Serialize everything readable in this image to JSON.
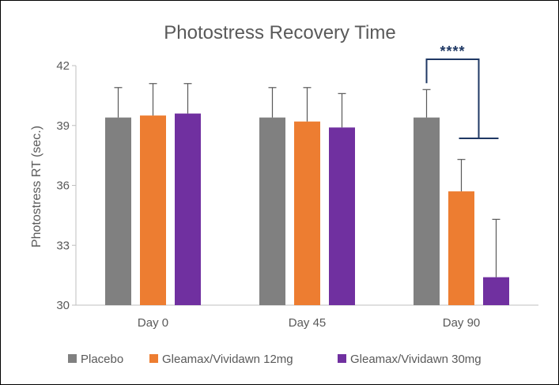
{
  "chart_data": {
    "type": "bar",
    "title": "Photostress Recovery Time",
    "xlabel": "",
    "ylabel": "Photostress RT (sec.)",
    "ylim": [
      30,
      42
    ],
    "yticks": [
      30,
      33,
      36,
      39,
      42
    ],
    "categories": [
      "Day 0",
      "Day 45",
      "Day 90"
    ],
    "series": [
      {
        "name": "Placebo",
        "color": "#808080",
        "values": [
          39.4,
          39.4,
          39.4
        ],
        "errors": [
          1.5,
          1.5,
          1.4
        ]
      },
      {
        "name": "Gleamax/Vividawn 12mg",
        "color": "#ed7d31",
        "values": [
          39.5,
          39.2,
          35.7
        ],
        "errors": [
          1.6,
          1.7,
          1.6
        ]
      },
      {
        "name": "Gleamax/Vividawn 30mg",
        "color": "#7030a0",
        "values": [
          39.6,
          38.9,
          31.4
        ],
        "errors": [
          1.5,
          1.7,
          2.9
        ]
      }
    ],
    "grid": false,
    "legend_position": "bottom",
    "annotation": {
      "text": "****",
      "category": "Day 90",
      "color": "#1f3864"
    }
  }
}
